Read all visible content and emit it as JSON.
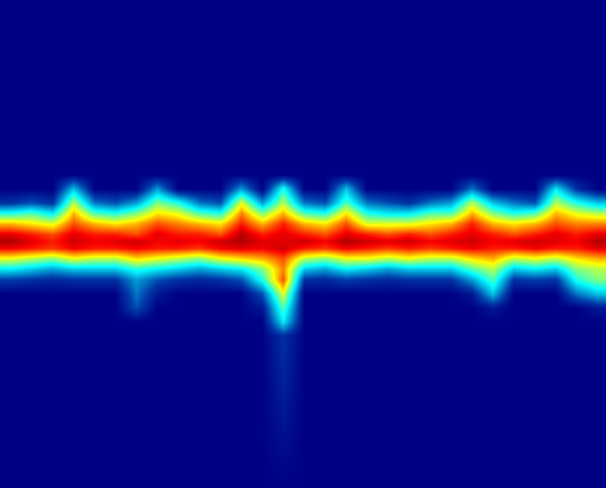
{
  "chart_data": {
    "type": "heatmap",
    "x": [
      15,
      45,
      75,
      105,
      135,
      165,
      195,
      225,
      255,
      285,
      315,
      345,
      375,
      405,
      435,
      465,
      495,
      525,
      555,
      585,
      615,
      645,
      675,
      705,
      735,
      765,
      795,
      825,
      855
    ],
    "y": [
      0,
      250,
      270,
      290,
      305,
      320,
      335,
      345,
      355,
      370,
      385,
      400,
      420,
      440,
      460,
      480,
      698
    ],
    "cells": [
      [
        0,
        0,
        0,
        0,
        0,
        0,
        0,
        0,
        0,
        0,
        0,
        0,
        0,
        0,
        0,
        0,
        0,
        0,
        0,
        0,
        0,
        0,
        0,
        0,
        0,
        0,
        0,
        0,
        0
      ],
      [
        0,
        0,
        0,
        0,
        0,
        0,
        0,
        0,
        0,
        0,
        0,
        0,
        0,
        0,
        0,
        0,
        0,
        0,
        0,
        0,
        0,
        0,
        0,
        0,
        0,
        0,
        0,
        0,
        0
      ],
      [
        0,
        0,
        0,
        30,
        0,
        0,
        0,
        25,
        0,
        0,
        0,
        25,
        0,
        40,
        0,
        0,
        30,
        0,
        0,
        0,
        0,
        0,
        20,
        0,
        0,
        0,
        35,
        10,
        0
      ],
      [
        10,
        15,
        10,
        55,
        20,
        15,
        25,
        50,
        40,
        20,
        15,
        60,
        25,
        55,
        20,
        15,
        45,
        20,
        15,
        10,
        20,
        25,
        55,
        30,
        20,
        15,
        55,
        40,
        30
      ],
      [
        40,
        45,
        35,
        70,
        45,
        40,
        50,
        65,
        60,
        45,
        40,
        75,
        50,
        70,
        45,
        40,
        65,
        40,
        35,
        35,
        45,
        45,
        70,
        50,
        40,
        45,
        70,
        60,
        55
      ],
      [
        70,
        65,
        60,
        80,
        70,
        65,
        70,
        80,
        75,
        70,
        65,
        85,
        70,
        85,
        70,
        65,
        80,
        60,
        60,
        60,
        65,
        70,
        85,
        70,
        65,
        70,
        80,
        75,
        75
      ],
      [
        90,
        85,
        80,
        90,
        85,
        85,
        80,
        90,
        85,
        85,
        80,
        95,
        85,
        90,
        85,
        80,
        90,
        85,
        80,
        85,
        80,
        85,
        90,
        85,
        80,
        85,
        90,
        85,
        90
      ],
      [
        95,
        90,
        85,
        92,
        88,
        90,
        92,
        88,
        90,
        88,
        92,
        95,
        90,
        90,
        92,
        88,
        95,
        92,
        90,
        92,
        88,
        90,
        92,
        88,
        90,
        92,
        90,
        88,
        95
      ],
      [
        88,
        85,
        82,
        88,
        85,
        85,
        88,
        85,
        85,
        82,
        88,
        90,
        88,
        92,
        85,
        82,
        88,
        85,
        82,
        85,
        82,
        85,
        88,
        85,
        85,
        88,
        85,
        85,
        90
      ],
      [
        60,
        55,
        50,
        60,
        55,
        55,
        65,
        60,
        55,
        50,
        60,
        65,
        70,
        80,
        55,
        50,
        60,
        60,
        55,
        60,
        55,
        55,
        65,
        70,
        55,
        60,
        55,
        65,
        70
      ],
      [
        35,
        30,
        25,
        30,
        30,
        30,
        40,
        35,
        30,
        25,
        30,
        35,
        50,
        75,
        30,
        25,
        35,
        30,
        25,
        30,
        30,
        30,
        45,
        55,
        30,
        35,
        30,
        50,
        55
      ],
      [
        12,
        10,
        8,
        10,
        10,
        10,
        25,
        15,
        10,
        8,
        10,
        15,
        40,
        80,
        10,
        8,
        12,
        10,
        8,
        10,
        10,
        10,
        25,
        45,
        10,
        12,
        10,
        40,
        50
      ],
      [
        0,
        0,
        0,
        0,
        0,
        0,
        20,
        5,
        0,
        0,
        0,
        0,
        15,
        60,
        0,
        0,
        0,
        0,
        0,
        0,
        0,
        0,
        5,
        30,
        0,
        0,
        0,
        20,
        30
      ],
      [
        0,
        0,
        0,
        0,
        0,
        0,
        15,
        0,
        0,
        0,
        0,
        0,
        5,
        45,
        0,
        0,
        0,
        0,
        0,
        0,
        0,
        0,
        0,
        5,
        0,
        0,
        0,
        0,
        5
      ],
      [
        0,
        0,
        0,
        0,
        0,
        0,
        0,
        0,
        0,
        0,
        0,
        0,
        0,
        35,
        0,
        0,
        0,
        0,
        0,
        0,
        0,
        0,
        0,
        0,
        0,
        0,
        0,
        0,
        0
      ],
      [
        0,
        0,
        0,
        0,
        0,
        0,
        0,
        0,
        0,
        0,
        0,
        0,
        0,
        10,
        0,
        0,
        0,
        0,
        0,
        0,
        0,
        0,
        0,
        0,
        0,
        0,
        0,
        0,
        0
      ],
      [
        0,
        0,
        0,
        0,
        0,
        0,
        0,
        0,
        0,
        0,
        0,
        0,
        0,
        0,
        0,
        0,
        0,
        0,
        0,
        0,
        0,
        0,
        0,
        0,
        0,
        0,
        0,
        0,
        0
      ]
    ],
    "zlim": [
      0,
      100
    ],
    "xlim": [
      0,
      867
    ],
    "ylim": [
      698,
      0
    ],
    "tick_labels": false,
    "grid": false
  }
}
